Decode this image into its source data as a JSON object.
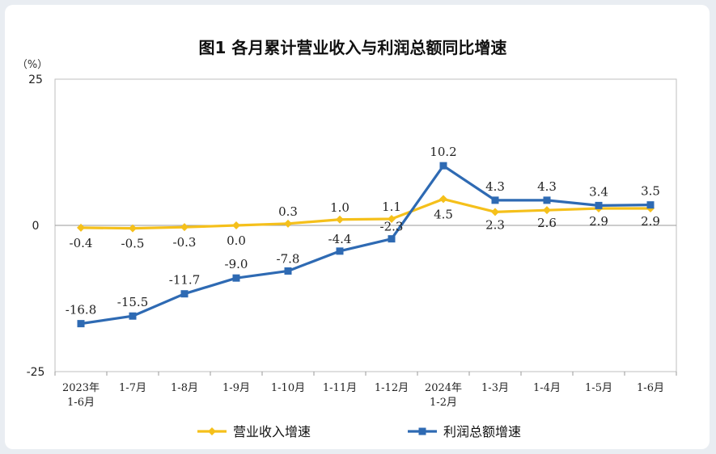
{
  "chart_data": {
    "type": "line",
    "title": "图1  各月累计营业收入与利润总额同比增速",
    "ylabel": "（%）",
    "ylim": [
      -25,
      25
    ],
    "yticks": [
      25,
      0,
      -25
    ],
    "categories": [
      [
        "2023年",
        "1-6月"
      ],
      [
        "1-7月"
      ],
      [
        "1-8月"
      ],
      [
        "1-9月"
      ],
      [
        "1-10月"
      ],
      [
        "1-11月"
      ],
      [
        "1-12月"
      ],
      [
        "2024年",
        "1-2月"
      ],
      [
        "1-3月"
      ],
      [
        "1-4月"
      ],
      [
        "1-5月"
      ],
      [
        "1-6月"
      ]
    ],
    "series": [
      {
        "name": "营业收入增速",
        "color": "#f5c01b",
        "marker": "diamond",
        "values": [
          -0.4,
          -0.5,
          -0.3,
          0.0,
          0.3,
          1.0,
          1.1,
          4.5,
          2.3,
          2.6,
          2.9,
          2.9
        ],
        "labels": [
          "-0.4",
          "-0.5",
          "-0.3",
          "0.0",
          "0.3",
          "1.0",
          "1.1",
          "4.5",
          "2.3",
          "2.6",
          "2.9",
          "2.9"
        ]
      },
      {
        "name": "利润总额增速",
        "color": "#2e6ab3",
        "marker": "square",
        "values": [
          -16.8,
          -15.5,
          -11.7,
          -9.0,
          -7.8,
          -4.4,
          -2.3,
          10.2,
          4.3,
          4.3,
          3.4,
          3.5
        ],
        "labels": [
          "-16.8",
          "-15.5",
          "-11.7",
          "-9.0",
          "-7.8",
          "-4.4",
          "-2.3",
          "10.2",
          "4.3",
          "4.3",
          "3.4",
          "3.5"
        ]
      }
    ],
    "legend_position": "bottom"
  }
}
